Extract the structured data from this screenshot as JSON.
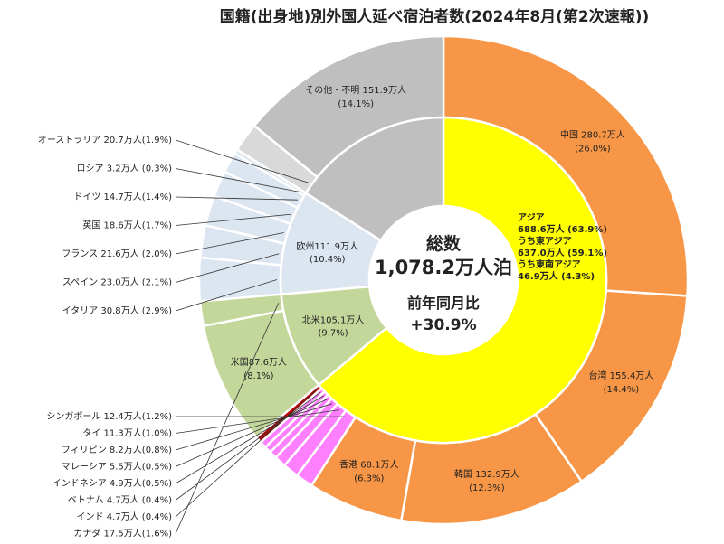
{
  "chart_data": {
    "type": "pie",
    "title": "国籍(出身地)別外国人延べ宿泊者数(2024年8月(第2次速報))",
    "center": {
      "line1": "総数",
      "line2": "1,078.2万人泊",
      "line3": "前年同月比",
      "line4": "+30.9%"
    },
    "unit": "万人",
    "inner_ring": [
      {
        "name": "アジア",
        "value": 688.6,
        "share": "63.9%",
        "color": "#ffff00",
        "lines": [
          "アジア",
          "688.6万人 (63.9%)",
          "うち東アジア",
          "637.0万人 (59.1%)",
          "うち東南アジア",
          "46.9万人 (4.3%)"
        ]
      },
      {
        "name": "北米",
        "value": 105.1,
        "share": "9.7%",
        "color": "#c4d79b",
        "lines": [
          "北米105.1万人",
          "(9.7%)"
        ]
      },
      {
        "name": "欧州",
        "value": 111.9,
        "share": "10.4%",
        "color": "#dce6f1",
        "lines": [
          "欧州111.9万人",
          "(10.4%)"
        ]
      },
      {
        "name": "その他・不明",
        "value": 172.6,
        "share": "",
        "color": "#bfbfbf",
        "lines": []
      }
    ],
    "outer_ring": [
      {
        "name": "中国",
        "value": 280.7,
        "color": "#f79646",
        "label": [
          "中国 280.7万人",
          "(26.0%)"
        ]
      },
      {
        "name": "台湾",
        "value": 155.4,
        "color": "#f79646",
        "label": [
          "台湾 155.4万人",
          "(14.4%)"
        ]
      },
      {
        "name": "韓国",
        "value": 132.9,
        "color": "#f79646",
        "label": [
          "韓国 132.9万人",
          "(12.3%)"
        ]
      },
      {
        "name": "香港",
        "value": 68.1,
        "color": "#f79646",
        "label": [
          "香港 68.1万人",
          "(6.3%)"
        ]
      },
      {
        "name": "シンガポール",
        "value": 12.4,
        "color": "#ff80ff",
        "label": [
          "シンガポール 12.4万人(1.2%)"
        ]
      },
      {
        "name": "タイ",
        "value": 11.3,
        "color": "#ff80ff",
        "label": [
          "タイ 11.3万人(1.0%)"
        ]
      },
      {
        "name": "フィリピン",
        "value": 8.2,
        "color": "#ff80ff",
        "label": [
          "フィリピン 8.2万人(0.8%)"
        ]
      },
      {
        "name": "マレーシア",
        "value": 5.5,
        "color": "#ff80ff",
        "label": [
          "マレーシア 5.5万人(0.5%)"
        ]
      },
      {
        "name": "インドネシア",
        "value": 4.9,
        "color": "#ff80ff",
        "label": [
          "インドネシア 4.9万人(0.5%)"
        ]
      },
      {
        "name": "ベトナム",
        "value": 4.7,
        "color": "#ff80ff",
        "label": [
          "ベトナム 4.7万人 (0.4%)"
        ]
      },
      {
        "name": "インド",
        "value": 4.7,
        "color": "#c00000",
        "label": [
          "インド 4.7万人 (0.4%)"
        ]
      },
      {
        "name": "米国",
        "value": 87.6,
        "color": "#c4d79b",
        "label": [
          "米国87.6万人",
          "(8.1%)"
        ]
      },
      {
        "name": "カナダ",
        "value": 17.5,
        "color": "#c4d79b",
        "label": [
          "カナダ 17.5万人(1.6%)"
        ]
      },
      {
        "name": "イタリア",
        "value": 30.8,
        "color": "#dce6f1",
        "label": [
          "イタリア 30.8万人 (2.9%)"
        ]
      },
      {
        "name": "スペイン",
        "value": 23.0,
        "color": "#dce6f1",
        "label": [
          "スペイン 23.0万人 (2.1%)"
        ]
      },
      {
        "name": "フランス",
        "value": 21.6,
        "color": "#dce6f1",
        "label": [
          "フランス 21.6万人 (2.0%)"
        ]
      },
      {
        "name": "英国",
        "value": 18.6,
        "color": "#dce6f1",
        "label": [
          "英国 18.6万人(1.7%)"
        ]
      },
      {
        "name": "ドイツ",
        "value": 14.7,
        "color": "#dce6f1",
        "label": [
          "ドイツ 14.7万人(1.4%)"
        ]
      },
      {
        "name": "ロシア",
        "value": 3.2,
        "color": "#dce6f1",
        "label": [
          "ロシア 3.2万人 (0.3%)"
        ]
      },
      {
        "name": "オーストラリア",
        "value": 20.7,
        "color": "#d9d9d9",
        "label": [
          "オーストラリア 20.7万人(1.9%)"
        ]
      },
      {
        "name": "その他・不明",
        "value": 151.9,
        "color": "#bfbfbf",
        "label": [
          "その他・不明 151.9万人",
          "(14.1%)"
        ]
      }
    ]
  }
}
